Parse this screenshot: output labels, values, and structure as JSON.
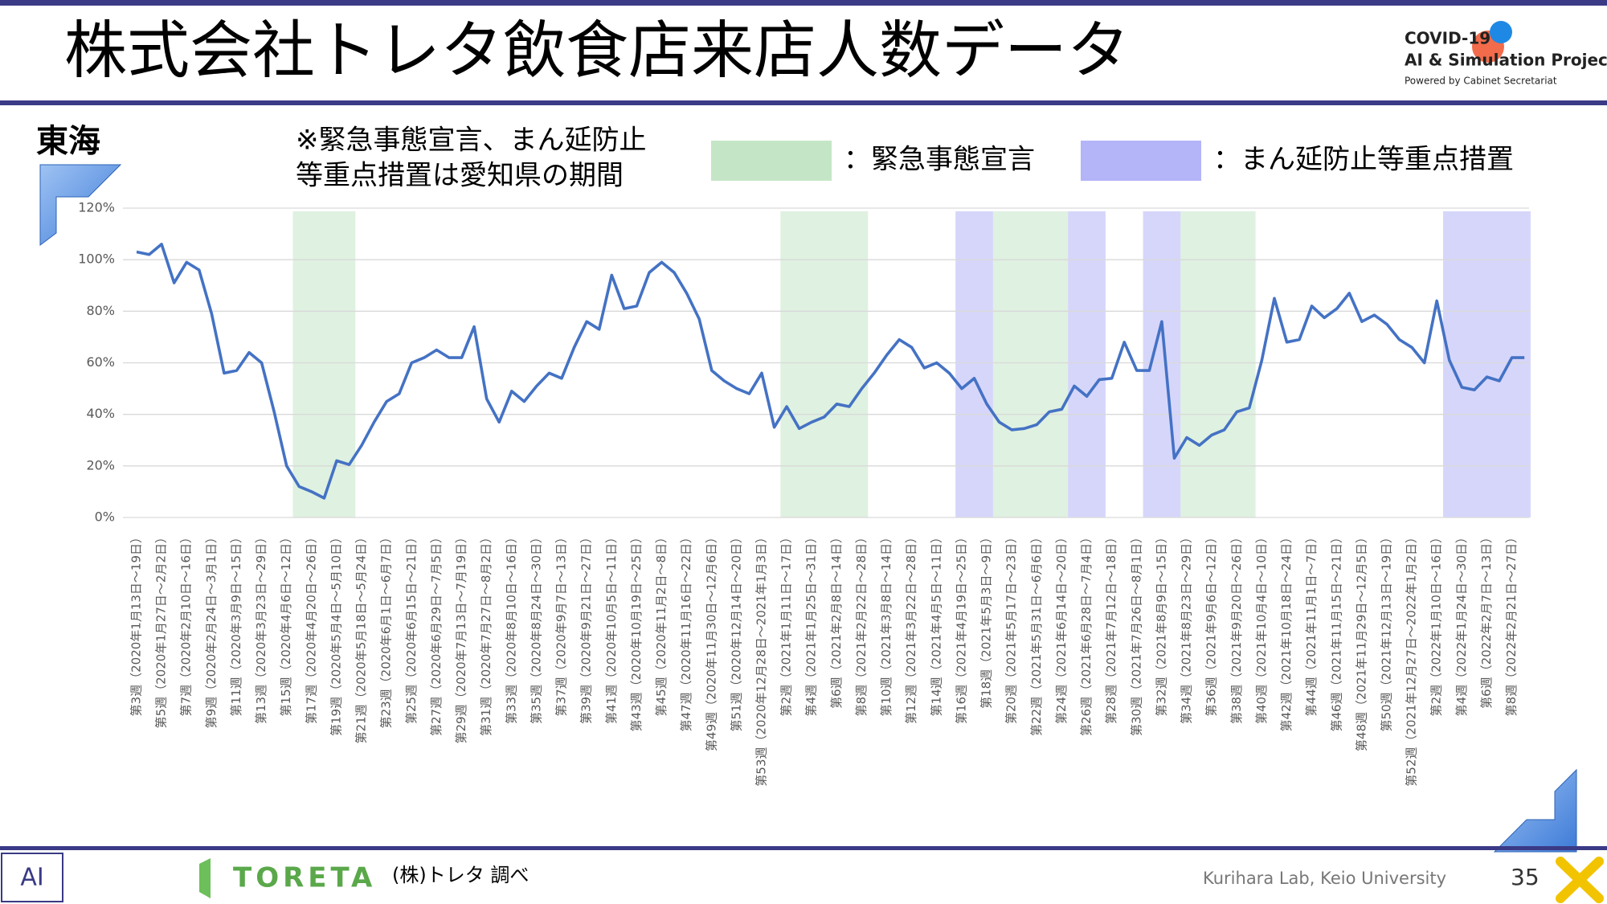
{
  "slide": {
    "title": "株式会社トレタ飲食店来店人数データ",
    "region": "東海",
    "note_lines": [
      "※緊急事態宣言、まん延防止",
      "等重点措置は愛知県の期間"
    ],
    "logo_lines": [
      "COVID-19",
      "AI & Simulation Project",
      "Powered by Cabinet Secretariat"
    ],
    "source_logo": "TORETA",
    "source": "(株)トレタ 調べ",
    "credit": "Kurihara Lab, Keio University",
    "page_number": "35"
  },
  "chart_data": {
    "type": "line",
    "color": "#4472c4",
    "grid": true,
    "ylim": [
      0,
      120
    ],
    "yticks": [
      {
        "value": 0,
        "label": "0%"
      },
      {
        "value": 20,
        "label": "20%"
      },
      {
        "value": 40,
        "label": "40%"
      },
      {
        "value": 60,
        "label": "60%"
      },
      {
        "value": 80,
        "label": "80%"
      },
      {
        "value": 100,
        "label": "100%"
      },
      {
        "value": 120,
        "label": "120%"
      }
    ],
    "legend": [
      {
        "label": "：緊急事態宣言",
        "color": "#c5e6c6",
        "periods": [
          [
            13,
            17
          ],
          [
            52,
            58
          ],
          [
            69,
            74
          ],
          [
            84,
            89
          ]
        ]
      },
      {
        "label": "：まん延防止等重点措置",
        "color": "#b4b4f8",
        "periods": [
          [
            66,
            68
          ],
          [
            75,
            77
          ],
          [
            81,
            83
          ],
          [
            105,
            111
          ]
        ]
      }
    ],
    "categories": [
      "第3週（2020年1月13日～19日）",
      null,
      "第5週（2020年1月27日～2月2日）",
      null,
      "第7週（2020年2月10日～16日）",
      null,
      "第9週（2020年2月24日～3月1日）",
      null,
      "第11週（2020年3月9日～15日）",
      null,
      "第13週（2020年3月23日～29日）",
      null,
      "第15週（2020年4月6日～12日）",
      null,
      "第17週（2020年4月20日～26日）",
      null,
      "第19週（2020年5月4日～5月10日）",
      null,
      "第21週（2020年5月18日～5月24日）",
      null,
      "第23週（2020年6月1日～6月7日）",
      null,
      "第25週（2020年6月15日～21日）",
      null,
      "第27週（2020年6月29日～7月5日）",
      null,
      "第29週（2020年7月13日～7月19日）",
      null,
      "第31週（2020年7月27日～8月2日）",
      null,
      "第33週（2020年8月10日～16日）",
      null,
      "第35週（2020年8月24日～30日）",
      null,
      "第37週（2020年9月7日～13日）",
      null,
      "第39週（2020年9月21日～27日）",
      null,
      "第41週（2020年10月5日～11日）",
      null,
      "第43週（2020年10月19日～25日）",
      null,
      "第45週（2020年11月2日～8日）",
      null,
      "第47週（2020年11月16日～22日）",
      null,
      "第49週（2020年11月30日～12月6日）",
      null,
      "第51週（2020年12月14日～20日）",
      null,
      "第53週（2020年12月28日～2021年1月3日）",
      null,
      "第2週（2021年1月11日～17日）",
      null,
      "第4週（2021年1月25日～31日）",
      null,
      "第6週（2021年2月8日～14日）",
      null,
      "第8週（2021年2月22日～28日）",
      null,
      "第10週（2021年3月8日～14日）",
      null,
      "第12週（2021年3月22日～28日）",
      null,
      "第14週（2021年4月5日～11日）",
      null,
      "第16週（2021年4月19日～25日）",
      null,
      "第18週（2021年5月3日～9日）",
      null,
      "第20週（2021年5月17日～23日）",
      null,
      "第22週（2021年5月31日～6月6日）",
      null,
      "第24週（2021年6月14日～20日）",
      null,
      "第26週（2021年6月28日～7月4日）",
      null,
      "第28週（2021年7月12日～18日）",
      null,
      "第30週（2021年7月26日～8月1日）",
      null,
      "第32週（2021年8月9日～15日）",
      null,
      "第34週（2021年8月23日～29日）",
      null,
      "第36週（2021年9月6日～12日）",
      null,
      "第38週（2021年9月20日～26日）",
      null,
      "第40週（2021年10月4日～10日）",
      null,
      "第42週（2021年10月18日～24日）",
      null,
      "第44週（2021年11月1日～7日）",
      null,
      "第46週（2021年11月15日～21日）",
      null,
      "第48週（2021年11月29日～12月5日）",
      null,
      "第50週（2021年12月13日～19日）",
      null,
      "第52週（2021年12月27日～2022年1月2日）",
      null,
      "第2週（2022年1月10日～16日）",
      null,
      "第4週（2022年1月24日～30日）",
      null,
      "第6週（2022年2月7日～13日）",
      null,
      "第8週（2022年2月21日～27日）",
      null
    ],
    "values": [
      103,
      102,
      106,
      91,
      99,
      96,
      79,
      56,
      57,
      64,
      60,
      41,
      20,
      12,
      10,
      7.5,
      22,
      20.5,
      28,
      37,
      45,
      48,
      60,
      62,
      65,
      62,
      62,
      74,
      46,
      37,
      49,
      45,
      51,
      56,
      54,
      66,
      76,
      73,
      94,
      81,
      82,
      95,
      99,
      95,
      87,
      77,
      57,
      53,
      50,
      48,
      56,
      35,
      43,
      34.5,
      37,
      39,
      44,
      43,
      50,
      56,
      63,
      69,
      66,
      58,
      60,
      56,
      50,
      54,
      44,
      37,
      34,
      34.5,
      36,
      41,
      42,
      51,
      47,
      53.5,
      54,
      68,
      57,
      57,
      76,
      23,
      31,
      28,
      32,
      34,
      41,
      42.5,
      61,
      85,
      68,
      69,
      82,
      77.5,
      81,
      87,
      76,
      78.5,
      75,
      69,
      66,
      60,
      84,
      61,
      50.5,
      49.5,
      54.5,
      53,
      62,
      62
    ]
  }
}
